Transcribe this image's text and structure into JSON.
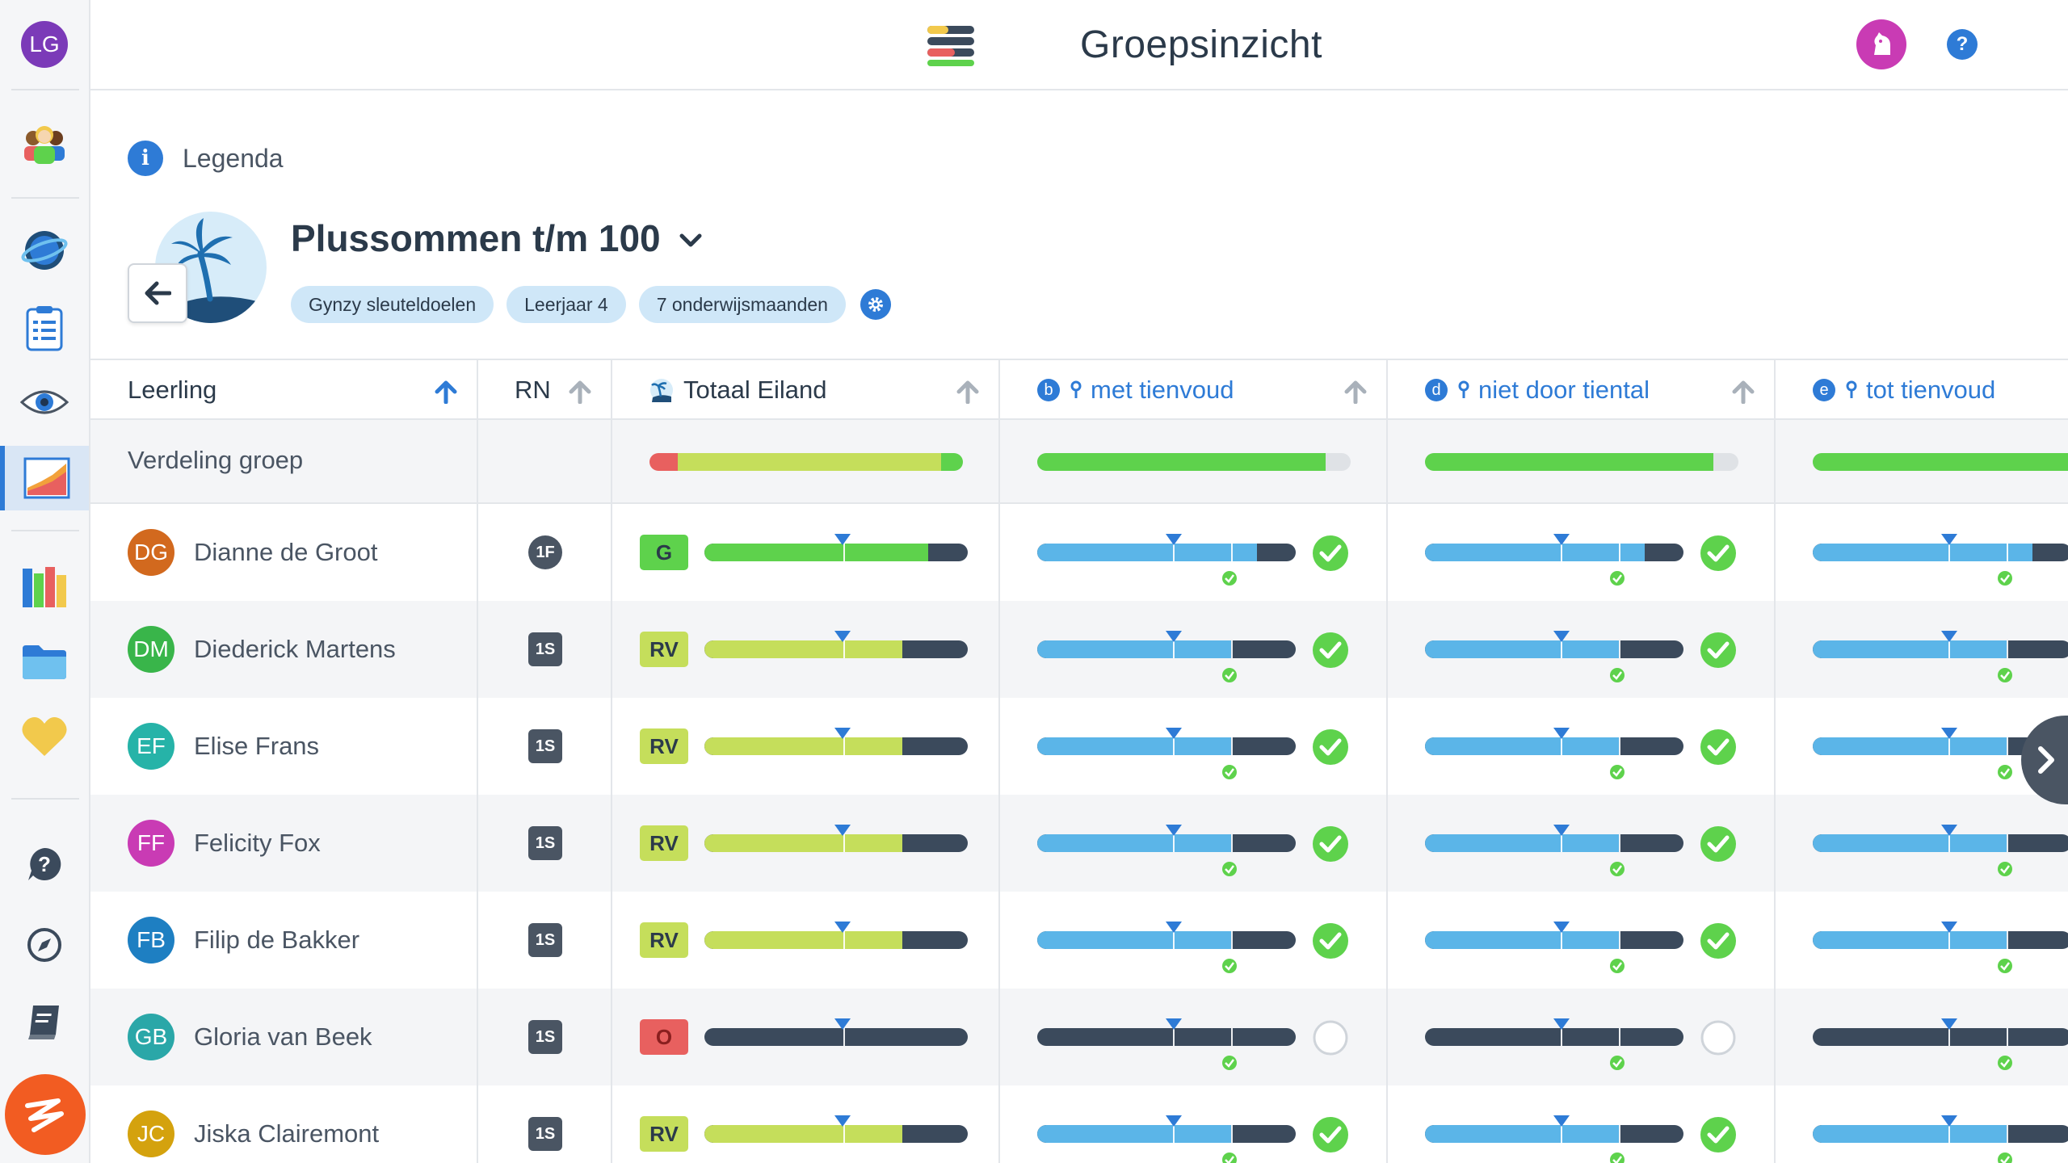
{
  "user": {
    "initials": "LG",
    "color": "#7b3ab8"
  },
  "app": {
    "title": "Groepsinzicht"
  },
  "legend": {
    "label": "Legenda"
  },
  "module": {
    "title": "Plussommen t/m 100",
    "tags": [
      "Gynzy sleuteldoelen",
      "Leerjaar 4",
      "7 onderwijsmaanden"
    ]
  },
  "table": {
    "headers": {
      "student": "Leerling",
      "rn": "RN",
      "total": "Totaal Eiland",
      "goal_b": {
        "letter": "b",
        "label": "met tienvoud"
      },
      "goal_d": {
        "letter": "d",
        "label": "niet door tiental"
      },
      "goal_e": {
        "letter": "e",
        "label": "tot tienvoud"
      }
    },
    "distribution_label": "Verdeling groep",
    "distribution": {
      "total": {
        "red": 0.09,
        "lime": 0.84,
        "green": 0.07
      },
      "goal_b": {
        "green": 0.92
      },
      "goal_d": {
        "green": 0.92
      },
      "goal_e": {
        "green": 1.0
      }
    },
    "rows": [
      {
        "initials": "DG",
        "name": "Dianne de Groot",
        "avatar_color": "#d2691e",
        "rn": "1F",
        "rn_shape": "circle",
        "level": "G",
        "level_color": "#5ed24c",
        "total_fill": 0.85,
        "total_color": "#5ed24c",
        "goal_fill": 0.85,
        "goal_color": "#5bb5e8",
        "done": true
      },
      {
        "initials": "DM",
        "name": "Diederick Martens",
        "avatar_color": "#39b54a",
        "rn": "1S",
        "rn_shape": "square",
        "level": "RV",
        "level_color": "#c5de5b",
        "total_fill": 0.75,
        "total_color": "#c5de5b",
        "goal_fill": 0.75,
        "goal_color": "#5bb5e8",
        "done": true
      },
      {
        "initials": "EF",
        "name": "Elise Frans",
        "avatar_color": "#26b3a8",
        "rn": "1S",
        "rn_shape": "square",
        "level": "RV",
        "level_color": "#c5de5b",
        "total_fill": 0.75,
        "total_color": "#c5de5b",
        "goal_fill": 0.75,
        "goal_color": "#5bb5e8",
        "done": true
      },
      {
        "initials": "FF",
        "name": "Felicity Fox",
        "avatar_color": "#c93bb4",
        "rn": "1S",
        "rn_shape": "square",
        "level": "RV",
        "level_color": "#c5de5b",
        "total_fill": 0.75,
        "total_color": "#c5de5b",
        "goal_fill": 0.75,
        "goal_color": "#5bb5e8",
        "done": true
      },
      {
        "initials": "FB",
        "name": "Filip de Bakker",
        "avatar_color": "#1e7fc2",
        "rn": "1S",
        "rn_shape": "square",
        "level": "RV",
        "level_color": "#c5de5b",
        "total_fill": 0.75,
        "total_color": "#c5de5b",
        "goal_fill": 0.75,
        "goal_color": "#5bb5e8",
        "done": true
      },
      {
        "initials": "GB",
        "name": "Gloria van Beek",
        "avatar_color": "#2aa7a8",
        "rn": "1S",
        "rn_shape": "square",
        "level": "O",
        "level_color": "#e8605f",
        "total_fill": 0.0,
        "total_color": "#c5de5b",
        "goal_fill": 0.0,
        "goal_color": "#5bb5e8",
        "done": false
      },
      {
        "initials": "JC",
        "name": "Jiska Clairemont",
        "avatar_color": "#d4a20e",
        "rn": "1S",
        "rn_shape": "square",
        "level": "RV",
        "level_color": "#c5de5b",
        "total_fill": 0.75,
        "total_color": "#c5de5b",
        "goal_fill": 0.75,
        "goal_color": "#5bb5e8",
        "done": true
      }
    ]
  }
}
